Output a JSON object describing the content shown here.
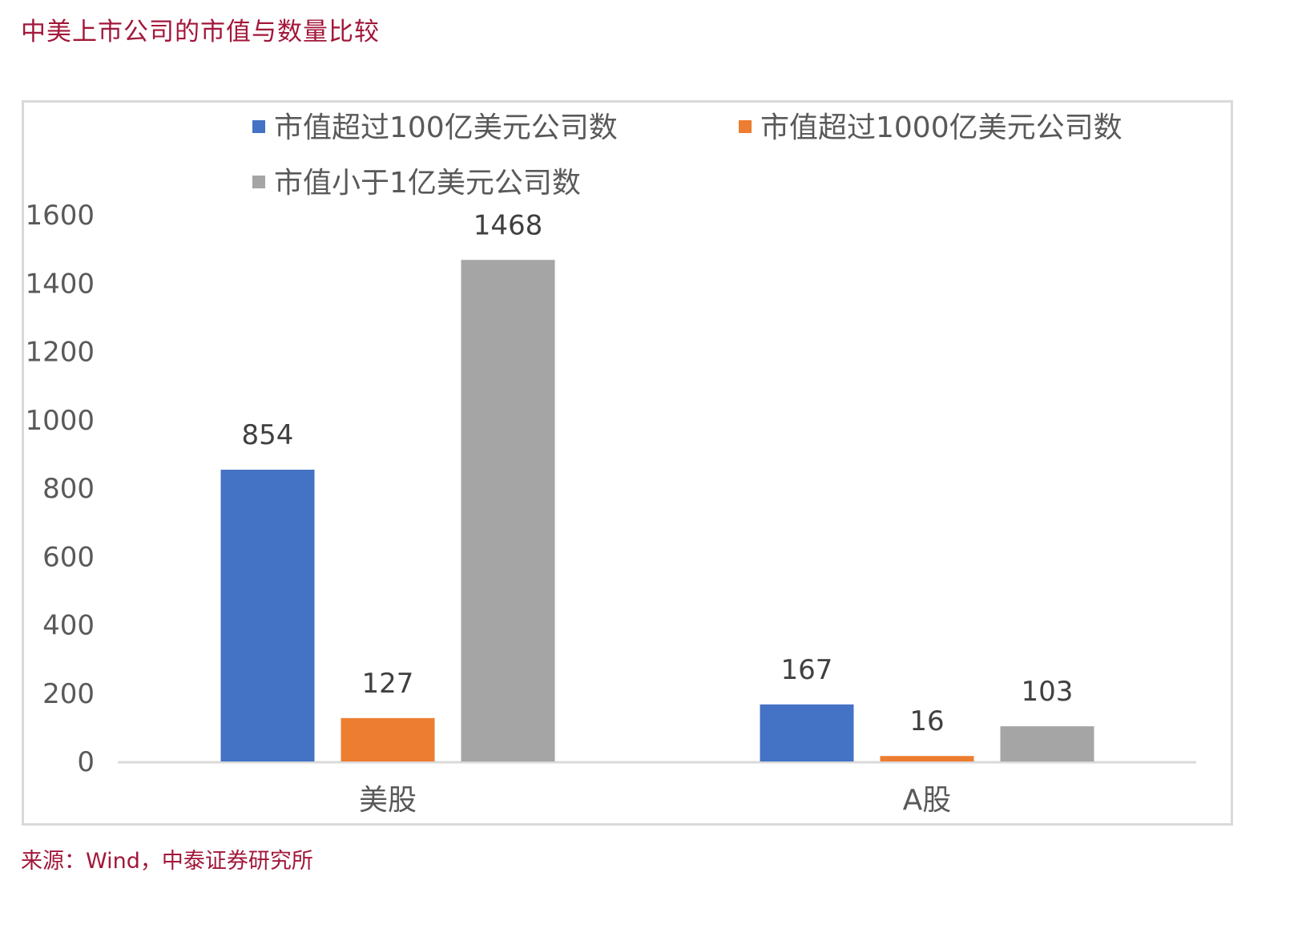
{
  "header": {
    "title": "中美上市公司的市值与数量比较"
  },
  "footer": {
    "source": "来源：Wind，中泰证券研究所"
  },
  "colors": {
    "title": "#a2173a",
    "series": [
      "#4472c4",
      "#ed7d31",
      "#a5a5a5"
    ],
    "axis_text": "#595959"
  },
  "chart_data": {
    "type": "bar",
    "title": "",
    "categories": [
      "美股",
      "A股"
    ],
    "series": [
      {
        "name": "市值超过100亿美元公司数",
        "values": [
          854,
          167
        ]
      },
      {
        "name": "市值超过1000亿美元公司数",
        "values": [
          127,
          16
        ]
      },
      {
        "name": "市值小于1亿美元公司数",
        "values": [
          1468,
          103
        ]
      }
    ],
    "ylim": [
      0,
      1600
    ],
    "yticks": [
      "0",
      "200",
      "400",
      "600",
      "800",
      "1000",
      "1200",
      "1400",
      "1600"
    ],
    "legend_position": "top",
    "grid": false,
    "data_labels": true
  }
}
